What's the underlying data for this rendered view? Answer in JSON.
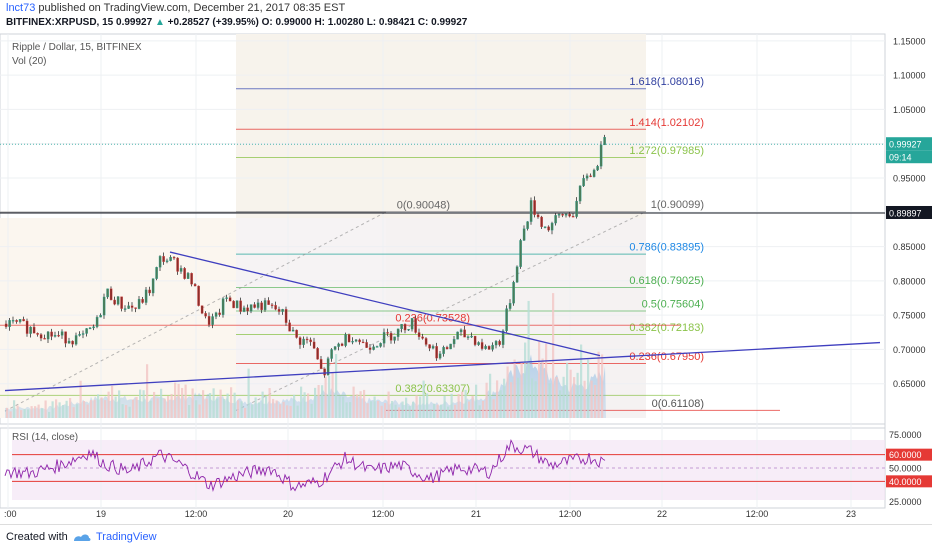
{
  "header": {
    "user": "lnct73",
    "published": " published on TradingView.com, December 21, 2017 08:35 EST",
    "symbol": "BITFINEX:XRPUSD, 15",
    "last": "0.99927",
    "change_arrow": "▲",
    "change": "+0.28527 (+39.95%)",
    "ohlc": "O: 0.99000  H: 1.00280  L: 0.98421  C: 0.99927"
  },
  "panels": {
    "title": "Ripple / Dollar, 15, BITFINEX",
    "volume": "Vol (20)",
    "rsi": "RSI (14, close)"
  },
  "footer": {
    "created_with": "Created with",
    "brand": "TradingView"
  },
  "colors": {
    "up": "#26a69a",
    "down": "#ef5350",
    "trendline": "#3f3fbf",
    "rsi": "#8e24aa",
    "accent": "#2962ff"
  },
  "chart_data": {
    "type": "candlestick",
    "price_axis": {
      "ylim": [
        0.6,
        1.16
      ],
      "ticks": [
        "1.15000",
        "1.10000",
        "1.05000",
        "1.00000",
        "0.95000",
        "0.90000",
        "0.85000",
        "0.80000",
        "0.75000",
        "0.70000",
        "0.65000"
      ],
      "last_price_label": "0.99927",
      "countdown_label": "09:14",
      "hline_label": "0.89897"
    },
    "time_axis": {
      "ticks": [
        ":00",
        "19",
        "12:00",
        "20",
        "12:00",
        "21",
        "12:00",
        "22",
        "12:00",
        "23"
      ]
    },
    "price_path": [
      [
        0,
        0.738
      ],
      [
        20,
        0.735
      ],
      [
        40,
        0.725
      ],
      [
        60,
        0.718
      ],
      [
        80,
        0.715
      ],
      [
        95,
        0.735
      ],
      [
        105,
        0.785
      ],
      [
        120,
        0.765
      ],
      [
        135,
        0.76
      ],
      [
        150,
        0.79
      ],
      [
        160,
        0.835
      ],
      [
        175,
        0.825
      ],
      [
        190,
        0.8
      ],
      [
        205,
        0.74
      ],
      [
        215,
        0.745
      ],
      [
        225,
        0.775
      ],
      [
        240,
        0.76
      ],
      [
        260,
        0.765
      ],
      [
        280,
        0.755
      ],
      [
        295,
        0.715
      ],
      [
        310,
        0.71
      ],
      [
        322,
        0.66
      ],
      [
        332,
        0.7
      ],
      [
        350,
        0.722
      ],
      [
        365,
        0.705
      ],
      [
        380,
        0.715
      ],
      [
        395,
        0.725
      ],
      [
        410,
        0.74
      ],
      [
        425,
        0.71
      ],
      [
        440,
        0.69
      ],
      [
        455,
        0.72
      ],
      [
        470,
        0.72
      ],
      [
        485,
        0.7
      ],
      [
        500,
        0.715
      ],
      [
        510,
        0.78
      ],
      [
        520,
        0.86
      ],
      [
        530,
        0.91
      ],
      [
        545,
        0.875
      ],
      [
        560,
        0.895
      ],
      [
        572,
        0.9
      ],
      [
        585,
        0.955
      ],
      [
        595,
        0.96
      ],
      [
        600,
        1.005
      ],
      [
        605,
        0.999
      ]
    ],
    "volume_profile": [
      [
        0,
        0.01
      ],
      [
        50,
        0.01
      ],
      [
        100,
        0.02
      ],
      [
        150,
        0.018
      ],
      [
        200,
        0.022
      ],
      [
        250,
        0.016
      ],
      [
        300,
        0.018
      ],
      [
        330,
        0.026
      ],
      [
        360,
        0.018
      ],
      [
        400,
        0.015
      ],
      [
        440,
        0.014
      ],
      [
        480,
        0.02
      ],
      [
        500,
        0.03
      ],
      [
        520,
        0.05
      ],
      [
        535,
        0.055
      ],
      [
        550,
        0.04
      ],
      [
        570,
        0.03
      ],
      [
        590,
        0.035
      ],
      [
        605,
        0.045
      ]
    ],
    "fibonacci_lower": [
      {
        "label": "0(0.61108)",
        "value": 0.61108
      },
      {
        "label": "0.236(0.67950)",
        "value": 0.6795
      },
      {
        "label": "0.382(0.72183)",
        "value": 0.72183
      },
      {
        "label": "0.5(0.75604)",
        "value": 0.75604
      },
      {
        "label": "0.618(0.79025)",
        "value": 0.79025
      },
      {
        "label": "0.786(0.83895)",
        "value": 0.83895
      },
      {
        "label": "1(0.90099)",
        "value": 0.90099
      },
      {
        "label": "1.272(0.97985)",
        "value": 0.97985
      },
      {
        "label": "1.414(1.02102)",
        "value": 1.02102
      },
      {
        "label": "1.618(1.08016)",
        "value": 1.08016
      }
    ],
    "fibonacci_upper": [
      {
        "label": "0(0.90048)",
        "value": 0.90048
      },
      {
        "label": "0.236(0.73528)",
        "value": 0.73528
      },
      {
        "label": "0.382(0.63307)",
        "value": 0.63307
      }
    ],
    "trendlines": [
      {
        "name": "descending",
        "from": [
          170,
          0.842
        ],
        "to": [
          600,
          0.691
        ]
      },
      {
        "name": "ascending",
        "from": [
          5,
          0.64
        ],
        "to": [
          880,
          0.71
        ]
      }
    ],
    "rsi": {
      "ylim": [
        20,
        80
      ],
      "ticks": [
        "75.0000",
        "60.0000",
        "50.0000",
        "40.0000",
        "25.0000"
      ],
      "levels": [
        60,
        40
      ],
      "path": [
        [
          0,
          48
        ],
        [
          30,
          46
        ],
        [
          60,
          52
        ],
        [
          90,
          62
        ],
        [
          105,
          53
        ],
        [
          130,
          47
        ],
        [
          160,
          60
        ],
        [
          180,
          53
        ],
        [
          210,
          37
        ],
        [
          240,
          45
        ],
        [
          270,
          50
        ],
        [
          295,
          36
        ],
        [
          320,
          40
        ],
        [
          345,
          57
        ],
        [
          370,
          48
        ],
        [
          400,
          52
        ],
        [
          430,
          42
        ],
        [
          460,
          50
        ],
        [
          490,
          47
        ],
        [
          510,
          67
        ],
        [
          530,
          63
        ],
        [
          550,
          52
        ],
        [
          570,
          55
        ],
        [
          590,
          58
        ],
        [
          605,
          54
        ]
      ]
    }
  }
}
